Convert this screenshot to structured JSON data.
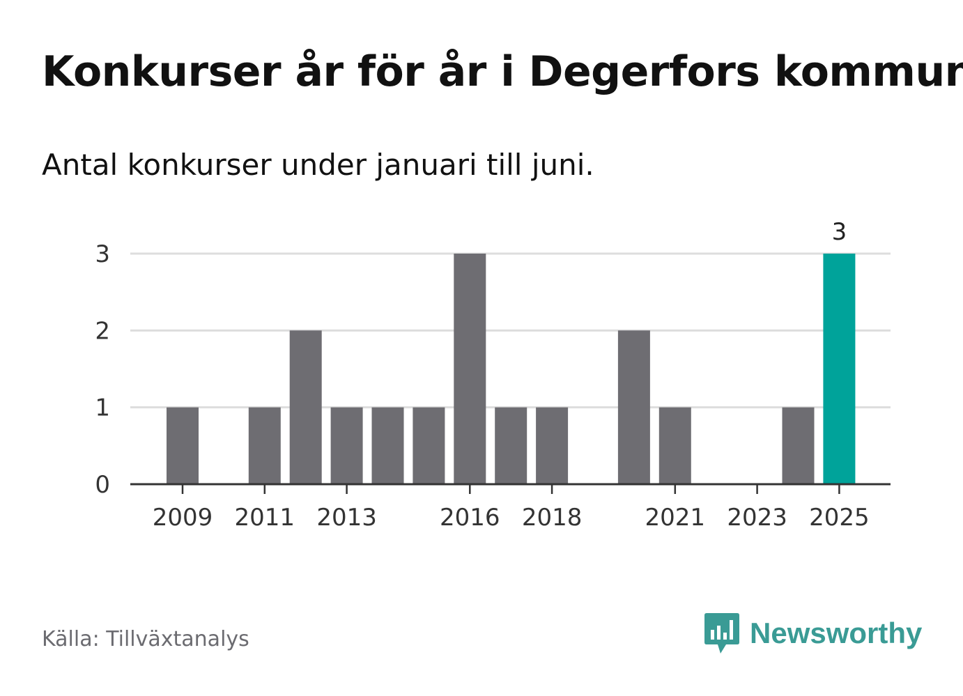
{
  "header": {
    "title": "Konkurser år för år i Degerfors kommun",
    "subtitle": "Antal konkurser under januari till juni."
  },
  "footer": {
    "source": "Källa: Tillväxtanalys",
    "brand": "Newsworthy",
    "brand_icon": "bar-chart-speech-bubble-icon"
  },
  "colors": {
    "bar": "#6e6d72",
    "highlight": "#00a39a",
    "grid": "#dddddd",
    "axis": "#333333",
    "brand": "#3a9b95"
  },
  "chart_data": {
    "type": "bar",
    "categories": [
      "2009",
      "2010",
      "2011",
      "2012",
      "2013",
      "2014",
      "2015",
      "2016",
      "2017",
      "2018",
      "2019",
      "2020",
      "2021",
      "2022",
      "2023",
      "2024",
      "2025"
    ],
    "values": [
      1,
      0,
      1,
      2,
      1,
      1,
      1,
      3,
      1,
      1,
      0,
      2,
      1,
      0,
      0,
      1,
      3
    ],
    "x_tick_labels": [
      "2009",
      "2011",
      "2013",
      "2016",
      "2018",
      "2021",
      "2023",
      "2025"
    ],
    "y_ticks": [
      0,
      1,
      2,
      3
    ],
    "ylim": [
      0,
      3
    ],
    "highlight_category": "2025",
    "data_labels": [
      {
        "category": "2025",
        "text": "3"
      }
    ],
    "grid": true,
    "xlabel": "",
    "ylabel": ""
  }
}
